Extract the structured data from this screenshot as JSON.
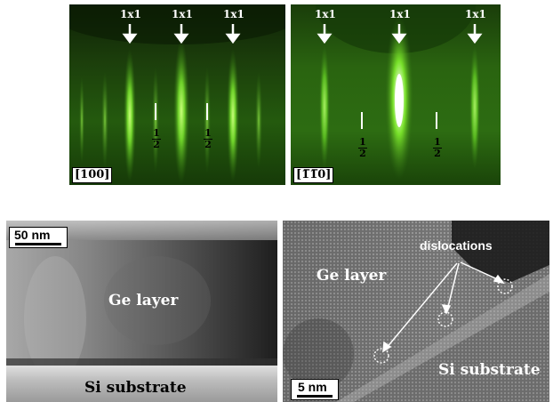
{
  "rheed_left": {
    "direction_label": "[100]",
    "arrow_labels": [
      "1x1",
      "1x1",
      "1x1"
    ],
    "half_order_labels": [
      "1/2",
      "1/2"
    ],
    "half_num": "1",
    "half_den": "2"
  },
  "rheed_right": {
    "direction_label": "[1̅1̅0]",
    "direction_text": "[110]",
    "arrow_labels": [
      "1x1",
      "1x1",
      "1x1"
    ],
    "half_num": "1",
    "half_den": "2"
  },
  "tem_left": {
    "scale_bar": "50 nm",
    "layer_label": "Ge layer",
    "substrate_label": "Si substrate"
  },
  "tem_right": {
    "scale_bar": "5 nm",
    "layer_label": "Ge layer",
    "substrate_label": "Si substrate",
    "annotation": "dislocations"
  }
}
